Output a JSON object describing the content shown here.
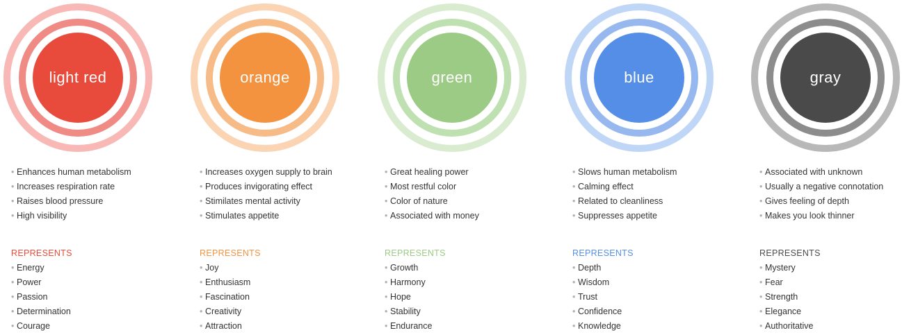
{
  "heading_label": "REPRESENTS",
  "colors": [
    {
      "key": "red",
      "label": "light red",
      "core": "#e84b3c",
      "ring_inner": "#f08a85",
      "ring_outer": "#f8b9b6",
      "heading_color": "#e84b3c",
      "facts": [
        "Enhances human metabolism",
        "Increases respiration rate",
        "Raises blood pressure",
        "High visibility"
      ],
      "represents": [
        "Energy",
        "Power",
        "Passion",
        "Determination",
        "Courage"
      ]
    },
    {
      "key": "orange",
      "label": "orange",
      "core": "#f39340",
      "ring_inner": "#f6bb86",
      "ring_outer": "#fad4b3",
      "heading_color": "#f39340",
      "facts": [
        "Increases oxygen supply to brain",
        "Produces invigorating effect",
        "Stimilates mental activity",
        "Stimulates appetite"
      ],
      "represents": [
        "Joy",
        "Enthusiasm",
        "Fascination",
        "Creativity",
        "Attraction"
      ]
    },
    {
      "key": "green",
      "label": "green",
      "core": "#9ccb85",
      "ring_inner": "#bfe0b0",
      "ring_outer": "#d9ecd0",
      "heading_color": "#9ccb85",
      "facts": [
        "Great healing power",
        "Most restful color",
        "Color of nature",
        "Associated with money"
      ],
      "represents": [
        "Growth",
        "Harmony",
        "Hope",
        "Stability",
        "Endurance"
      ]
    },
    {
      "key": "blue",
      "label": "blue",
      "core": "#558ee6",
      "ring_inner": "#96b8ee",
      "ring_outer": "#c0d6f6",
      "heading_color": "#558ee6",
      "facts": [
        "Slows human metabolism",
        "Calming effect",
        "Related to cleanliness",
        "Suppresses appetite"
      ],
      "represents": [
        "Depth",
        "Wisdom",
        "Trust",
        "Confidence",
        "Knowledge"
      ]
    },
    {
      "key": "gray",
      "label": "gray",
      "core": "#4a4a4a",
      "ring_inner": "#8c8c8c",
      "ring_outer": "#b8b8b8",
      "heading_color": "#4a4a4a",
      "facts": [
        "Associated with unknown",
        "Usually a negative connotation",
        "Gives feeling of depth",
        "Makes you look thinner"
      ],
      "represents": [
        "Mystery",
        "Fear",
        "Strength",
        "Elegance",
        "Authoritative"
      ]
    }
  ]
}
